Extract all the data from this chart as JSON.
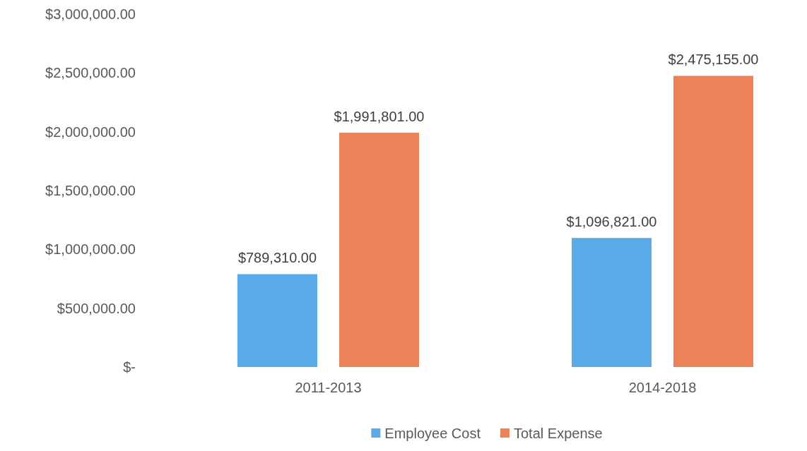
{
  "chart_data": {
    "type": "bar",
    "categories": [
      "2011-2013",
      "2014-2018"
    ],
    "series": [
      {
        "name": "Employee Cost",
        "color": "#5aaae8",
        "values": [
          789310,
          1096821
        ],
        "value_labels": [
          "$789,310.00",
          "$1,096,821.00"
        ]
      },
      {
        "name": "Total Expense",
        "color": "#ec8358",
        "values": [
          1991801,
          2475155
        ],
        "value_labels": [
          "$1,991,801.00",
          "$2,475,155.00"
        ]
      }
    ],
    "ylim": [
      0,
      3000000
    ],
    "yticks": [
      {
        "value": 0,
        "label": "$-"
      },
      {
        "value": 500000,
        "label": "$500,000.00"
      },
      {
        "value": 1000000,
        "label": "$1,000,000.00"
      },
      {
        "value": 1500000,
        "label": "$1,500,000.00"
      },
      {
        "value": 2000000,
        "label": "$2,000,000.00"
      },
      {
        "value": 2500000,
        "label": "$2,500,000.00"
      },
      {
        "value": 3000000,
        "label": "$3,000,000.00"
      }
    ],
    "grid": false,
    "legend": "bottom"
  }
}
